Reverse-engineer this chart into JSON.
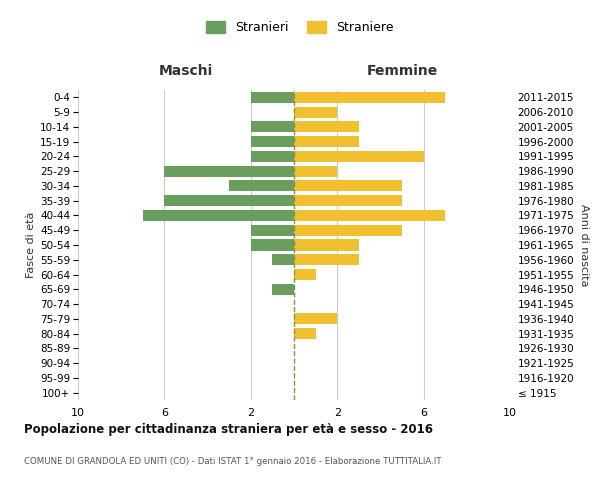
{
  "age_groups": [
    "100+",
    "95-99",
    "90-94",
    "85-89",
    "80-84",
    "75-79",
    "70-74",
    "65-69",
    "60-64",
    "55-59",
    "50-54",
    "45-49",
    "40-44",
    "35-39",
    "30-34",
    "25-29",
    "20-24",
    "15-19",
    "10-14",
    "5-9",
    "0-4"
  ],
  "birth_years": [
    "≤ 1915",
    "1916-1920",
    "1921-1925",
    "1926-1930",
    "1931-1935",
    "1936-1940",
    "1941-1945",
    "1946-1950",
    "1951-1955",
    "1956-1960",
    "1961-1965",
    "1966-1970",
    "1971-1975",
    "1976-1980",
    "1981-1985",
    "1986-1990",
    "1991-1995",
    "1996-2000",
    "2001-2005",
    "2006-2010",
    "2011-2015"
  ],
  "males": [
    0,
    0,
    0,
    0,
    0,
    0,
    0,
    1,
    0,
    1,
    2,
    2,
    7,
    6,
    3,
    6,
    2,
    2,
    2,
    0,
    2
  ],
  "females": [
    0,
    0,
    0,
    0,
    1,
    2,
    0,
    0,
    1,
    3,
    3,
    5,
    7,
    5,
    5,
    2,
    6,
    3,
    3,
    2,
    7
  ],
  "male_color": "#6a9e5f",
  "female_color": "#f0c030",
  "dashed_line_color": "#8b8b50",
  "grid_color": "#cccccc",
  "background_color": "#ffffff",
  "title": "Popolazione per cittadinanza straniera per età e sesso - 2016",
  "subtitle": "COMUNE DI GRANDOLA ED UNITI (CO) - Dati ISTAT 1° gennaio 2016 - Elaborazione TUTTITALIA.IT",
  "legend_stranieri": "Stranieri",
  "legend_straniere": "Straniere",
  "xlabel_left": "Maschi",
  "xlabel_right": "Femmine",
  "ylabel_left": "Fasce di età",
  "ylabel_right": "Anni di nascita",
  "xlim": 10,
  "xtick_positions": [
    -10,
    -6,
    -2,
    2,
    6,
    10
  ],
  "xtick_labels": [
    "10",
    "6",
    "2",
    "2",
    "6",
    "10"
  ]
}
